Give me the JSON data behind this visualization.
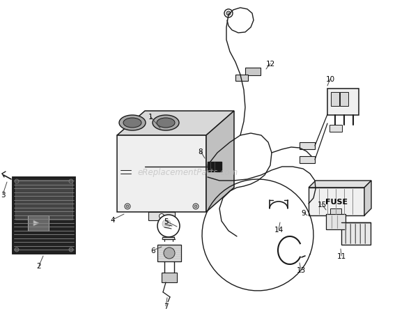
{
  "bg_color": "#ffffff",
  "line_color": "#1a1a1a",
  "watermark": "eReplacementParts.com",
  "fig_w": 5.9,
  "fig_h": 4.6,
  "dpi": 100
}
